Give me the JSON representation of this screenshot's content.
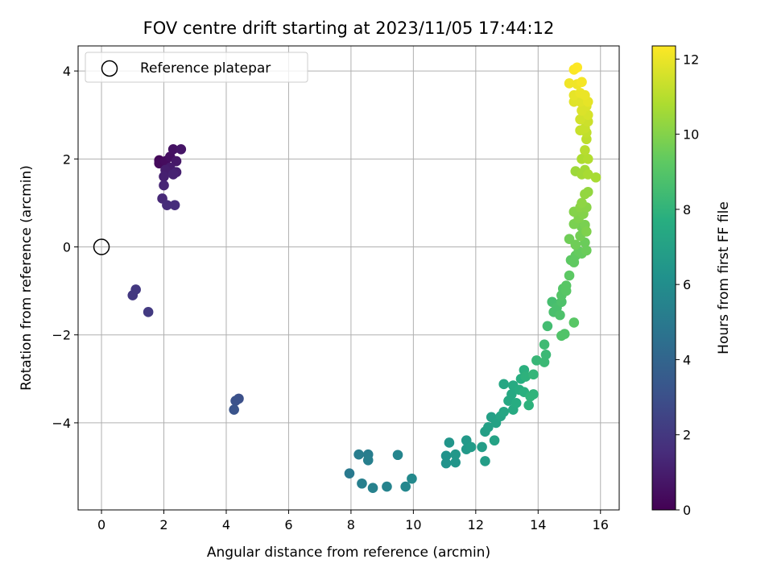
{
  "chart_data": {
    "type": "scatter",
    "title": "FOV centre drift starting at 2023/11/05 17:44:12",
    "xlabel": "Angular distance from reference (arcmin)",
    "ylabel": "Rotation from reference (arcmin)",
    "xlim": [
      -0.75,
      16.6
    ],
    "ylim": [
      -5.98,
      4.57
    ],
    "xticks": [
      0,
      2,
      4,
      6,
      8,
      10,
      12,
      14,
      16
    ],
    "yticks": [
      -4,
      -2,
      0,
      2,
      4
    ],
    "grid": true,
    "legend": {
      "placement": "upper-left",
      "entries": [
        {
          "label": "Reference platepar",
          "marker": "hollow-circle"
        }
      ]
    },
    "reference_point": {
      "x": 0,
      "y": 0
    },
    "colorbar": {
      "label": "Hours from first FF file",
      "min": 0,
      "max": 12.35,
      "ticks": [
        0,
        2,
        4,
        6,
        8,
        10,
        12
      ],
      "colormap": "viridis"
    },
    "series": [
      {
        "points": [
          [
            1.85,
            1.97,
            0.2
          ],
          [
            1.85,
            1.9,
            0.3
          ],
          [
            2.05,
            1.95,
            0.4
          ],
          [
            2.2,
            2.05,
            0.5
          ],
          [
            2.3,
            2.22,
            0.6
          ],
          [
            2.55,
            2.22,
            0.7
          ],
          [
            2.4,
            1.95,
            0.8
          ],
          [
            2.2,
            1.8,
            0.9
          ],
          [
            2.05,
            1.75,
            1.0
          ],
          [
            2.4,
            1.7,
            1.1
          ],
          [
            2.0,
            1.6,
            1.1
          ],
          [
            2.3,
            1.65,
            1.2
          ],
          [
            2.0,
            1.4,
            1.3
          ],
          [
            1.95,
            1.1,
            1.4
          ],
          [
            2.1,
            0.95,
            1.5
          ],
          [
            2.35,
            0.95,
            1.6
          ],
          [
            1.1,
            -0.97,
            2.0
          ],
          [
            1.0,
            -1.1,
            2.0
          ],
          [
            1.5,
            -1.48,
            2.1
          ],
          [
            4.4,
            -3.45,
            3.0
          ],
          [
            4.3,
            -3.5,
            3.1
          ],
          [
            4.25,
            -3.7,
            3.2
          ],
          [
            7.95,
            -5.15,
            5.0
          ],
          [
            8.25,
            -4.72,
            5.2
          ],
          [
            8.55,
            -4.72,
            5.2
          ],
          [
            8.35,
            -5.38,
            5.3
          ],
          [
            8.55,
            -4.85,
            5.3
          ],
          [
            8.7,
            -5.48,
            5.4
          ],
          [
            9.15,
            -5.45,
            5.5
          ],
          [
            9.5,
            -4.73,
            5.6
          ],
          [
            9.75,
            -5.45,
            5.7
          ],
          [
            9.95,
            -5.27,
            5.8
          ],
          [
            11.05,
            -4.92,
            6.3
          ],
          [
            11.05,
            -4.75,
            6.3
          ],
          [
            11.15,
            -4.45,
            6.4
          ],
          [
            11.35,
            -4.9,
            6.4
          ],
          [
            11.35,
            -4.72,
            6.5
          ],
          [
            11.7,
            -4.6,
            6.6
          ],
          [
            11.7,
            -4.4,
            6.6
          ],
          [
            11.85,
            -4.55,
            6.7
          ],
          [
            12.2,
            -4.55,
            6.8
          ],
          [
            12.3,
            -4.87,
            6.8
          ],
          [
            12.3,
            -4.2,
            6.9
          ],
          [
            12.4,
            -4.1,
            7.0
          ],
          [
            12.5,
            -3.87,
            7.0
          ],
          [
            12.6,
            -4.4,
            7.1
          ],
          [
            12.65,
            -4.0,
            7.1
          ],
          [
            12.8,
            -3.85,
            7.2
          ],
          [
            12.9,
            -3.75,
            7.3
          ],
          [
            12.9,
            -3.12,
            7.3
          ],
          [
            13.05,
            -3.5,
            7.4
          ],
          [
            13.15,
            -3.35,
            7.4
          ],
          [
            13.2,
            -3.15,
            7.5
          ],
          [
            13.2,
            -3.7,
            7.5
          ],
          [
            13.3,
            -3.55,
            7.6
          ],
          [
            13.4,
            -3.25,
            7.6
          ],
          [
            13.45,
            -3.0,
            7.7
          ],
          [
            13.55,
            -2.8,
            7.8
          ],
          [
            13.55,
            -3.3,
            7.8
          ],
          [
            13.6,
            -2.95,
            7.9
          ],
          [
            13.7,
            -3.6,
            7.9
          ],
          [
            13.75,
            -3.4,
            8.0
          ],
          [
            13.85,
            -3.35,
            8.0
          ],
          [
            13.85,
            -2.9,
            8.1
          ],
          [
            13.95,
            -2.58,
            8.2
          ],
          [
            14.2,
            -2.62,
            8.3
          ],
          [
            14.25,
            -2.45,
            8.3
          ],
          [
            14.2,
            -2.22,
            8.4
          ],
          [
            14.3,
            -1.8,
            8.5
          ],
          [
            14.45,
            -1.25,
            8.6
          ],
          [
            14.5,
            -1.48,
            8.7
          ],
          [
            14.6,
            -1.38,
            8.7
          ],
          [
            14.7,
            -1.55,
            8.8
          ],
          [
            14.75,
            -1.25,
            8.8
          ],
          [
            14.75,
            -2.02,
            8.9
          ],
          [
            14.85,
            -1.98,
            8.9
          ],
          [
            14.75,
            -1.1,
            9.0
          ],
          [
            14.8,
            -0.95,
            9.0
          ],
          [
            14.9,
            -1.0,
            9.1
          ],
          [
            14.9,
            -0.88,
            9.1
          ],
          [
            15.15,
            -1.72,
            9.1
          ],
          [
            15.0,
            -0.65,
            9.2
          ],
          [
            15.05,
            -0.3,
            9.2
          ],
          [
            15.15,
            -0.35,
            9.3
          ],
          [
            15.2,
            -0.2,
            9.3
          ],
          [
            15.3,
            -0.1,
            9.4
          ],
          [
            15.4,
            -0.15,
            9.4
          ],
          [
            15.5,
            0.1,
            9.5
          ],
          [
            15.55,
            -0.08,
            9.5
          ],
          [
            15.0,
            0.18,
            9.6
          ],
          [
            15.2,
            0.05,
            9.6
          ],
          [
            15.35,
            0.25,
            9.7
          ],
          [
            15.4,
            0.45,
            9.7
          ],
          [
            15.15,
            0.52,
            9.8
          ],
          [
            15.5,
            0.5,
            9.8
          ],
          [
            15.55,
            0.35,
            9.9
          ],
          [
            15.3,
            0.65,
            9.9
          ],
          [
            15.15,
            0.8,
            10.0
          ],
          [
            15.45,
            0.75,
            10.0
          ],
          [
            15.35,
            0.9,
            10.1
          ],
          [
            15.55,
            0.9,
            10.1
          ],
          [
            15.4,
            1.0,
            10.2
          ],
          [
            15.5,
            1.2,
            10.3
          ],
          [
            15.6,
            1.25,
            10.3
          ],
          [
            15.2,
            1.72,
            10.5
          ],
          [
            15.4,
            1.65,
            10.6
          ],
          [
            15.5,
            1.75,
            10.6
          ],
          [
            15.6,
            1.65,
            10.7
          ],
          [
            15.85,
            1.58,
            10.7
          ],
          [
            15.4,
            2.0,
            10.8
          ],
          [
            15.6,
            2.0,
            10.9
          ],
          [
            15.5,
            2.2,
            11.0
          ],
          [
            15.55,
            2.45,
            11.1
          ],
          [
            15.55,
            2.6,
            11.2
          ],
          [
            15.35,
            2.65,
            11.3
          ],
          [
            15.5,
            2.7,
            11.3
          ],
          [
            15.6,
            2.85,
            11.4
          ],
          [
            15.35,
            2.9,
            11.5
          ],
          [
            15.6,
            3.0,
            11.6
          ],
          [
            15.4,
            3.1,
            11.7
          ],
          [
            15.55,
            3.2,
            11.7
          ],
          [
            15.15,
            3.3,
            11.8
          ],
          [
            15.35,
            3.3,
            11.8
          ],
          [
            15.6,
            3.3,
            11.9
          ],
          [
            15.15,
            3.45,
            11.9
          ],
          [
            15.35,
            3.5,
            12.0
          ],
          [
            15.5,
            3.45,
            12.0
          ],
          [
            15.0,
            3.72,
            12.1
          ],
          [
            15.25,
            3.7,
            12.1
          ],
          [
            15.4,
            3.75,
            12.2
          ],
          [
            15.15,
            4.03,
            12.3
          ],
          [
            15.25,
            4.08,
            12.35
          ]
        ]
      }
    ]
  }
}
